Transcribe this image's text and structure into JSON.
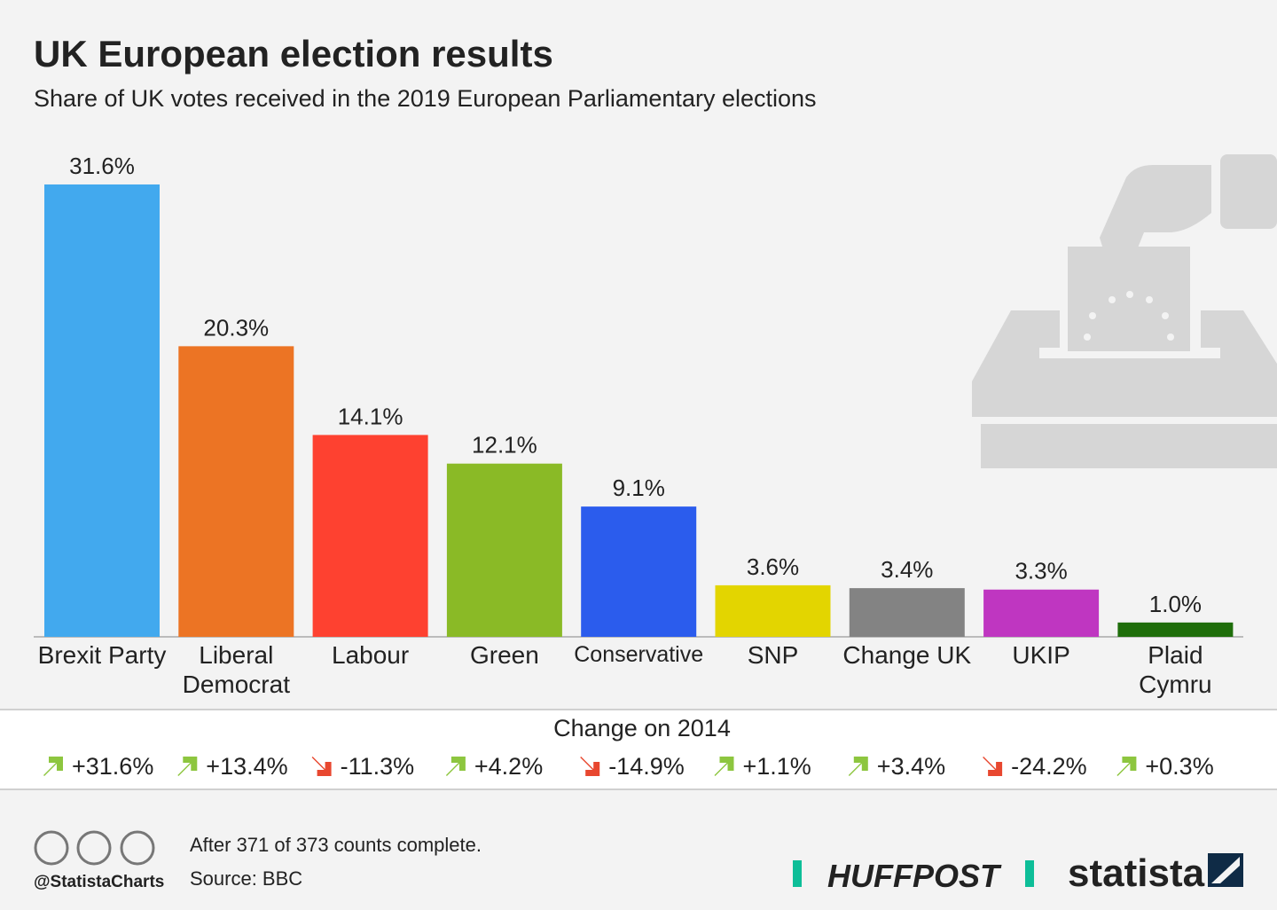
{
  "chart_data": {
    "type": "bar",
    "title": "UK European election results",
    "subtitle": "Share of UK votes received in the 2019 European Parliamentary elections",
    "categories": [
      "Brexit Party",
      "Liberal Democrat",
      "Labour",
      "Green",
      "Conservative",
      "SNP",
      "Change UK",
      "UKIP",
      "Plaid Cymru"
    ],
    "values": [
      31.6,
      20.3,
      14.1,
      12.1,
      9.1,
      3.6,
      3.4,
      3.3,
      1.0
    ],
    "value_labels": [
      "31.6%",
      "20.3%",
      "14.1%",
      "12.1%",
      "9.1%",
      "3.6%",
      "3.4%",
      "3.3%",
      "1.0%"
    ],
    "colors": [
      "#42a9ee",
      "#ec7424",
      "#fe4130",
      "#8aba26",
      "#2b5ced",
      "#e3d500",
      "#838383",
      "#bf36c1",
      "#1f6e0b"
    ],
    "change": {
      "title": "Change on 2014",
      "values": [
        31.6,
        13.4,
        -11.3,
        4.2,
        -14.9,
        1.1,
        3.4,
        -24.2,
        0.3
      ],
      "value_labels": [
        "+31.6%",
        "+13.4%",
        "-11.3%",
        "+4.2%",
        "-14.9%",
        "+1.1%",
        "+3.4%",
        "-24.2%",
        "+0.3%"
      ]
    }
  },
  "footer": {
    "handle": "@StatistaCharts",
    "note": "After 371 of 373 counts complete.",
    "source": "Source: BBC",
    "logos": [
      "HUFFPOST",
      "statista"
    ]
  }
}
